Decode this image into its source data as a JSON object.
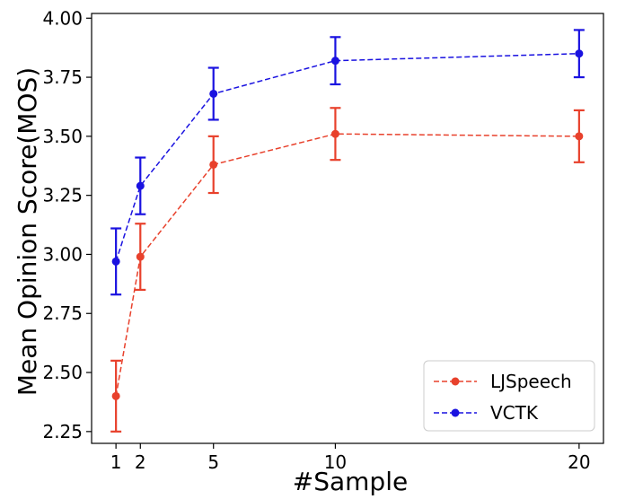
{
  "chart_data": {
    "type": "line",
    "xlabel": "#Sample",
    "ylabel": "Mean Opinion Score(MOS)",
    "x": [
      1,
      2,
      5,
      10,
      20
    ],
    "xticks": [
      "1",
      "2",
      "5",
      "10",
      "20"
    ],
    "xlim": [
      0,
      21
    ],
    "ylim": [
      2.2,
      4.02
    ],
    "yticks": [
      "2.25",
      "2.50",
      "2.75",
      "3.00",
      "3.25",
      "3.50",
      "3.75",
      "4.00"
    ],
    "grid": false,
    "legend_position": "lower-right",
    "series": [
      {
        "name": "LJSpeech",
        "color": "#e8412c",
        "values": [
          2.4,
          2.99,
          3.38,
          3.51,
          3.5
        ],
        "err_low": [
          2.25,
          2.85,
          3.26,
          3.4,
          3.39
        ],
        "err_high": [
          2.55,
          3.13,
          3.5,
          3.62,
          3.61
        ]
      },
      {
        "name": "VCTK",
        "color": "#1a12e0",
        "values": [
          2.97,
          3.29,
          3.68,
          3.82,
          3.85
        ],
        "err_low": [
          2.83,
          3.17,
          3.57,
          3.72,
          3.75
        ],
        "err_high": [
          3.11,
          3.41,
          3.79,
          3.92,
          3.95
        ]
      }
    ]
  }
}
